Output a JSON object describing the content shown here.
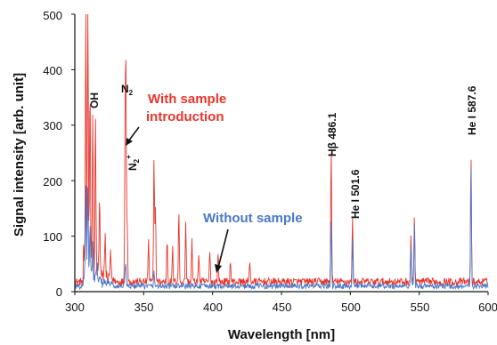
{
  "chart_data": {
    "type": "line",
    "xlabel": "Wavelength [nm]",
    "ylabel": "Signal intensity [arb. unit]",
    "xlim": [
      300,
      600
    ],
    "ylim": [
      0,
      500
    ],
    "x_ticks": [
      "300",
      "350",
      "400",
      "450",
      "500",
      "550",
      "600"
    ],
    "y_ticks": [
      "0",
      "100",
      "200",
      "300",
      "400",
      "500"
    ],
    "grid": false,
    "colors": {
      "with_sample": "#e8352b",
      "without_sample": "#4a78c8"
    },
    "series": [
      {
        "name": "With sample introduction",
        "color": "#e8352b",
        "baseline": 15,
        "noise": 14,
        "peaks": [
          [
            308,
            500
          ],
          [
            309.5,
            500
          ],
          [
            311,
            330
          ],
          [
            313,
            270
          ],
          [
            315,
            285
          ],
          [
            318,
            120
          ],
          [
            322,
            70
          ],
          [
            326,
            50
          ],
          [
            336.5,
            260
          ],
          [
            337.1,
            350
          ],
          [
            338,
            110
          ],
          [
            353.5,
            80
          ],
          [
            357.5,
            225
          ],
          [
            358.5,
            140
          ],
          [
            367,
            80
          ],
          [
            371,
            60
          ],
          [
            375.5,
            130
          ],
          [
            380.5,
            110
          ],
          [
            385,
            75
          ],
          [
            390,
            55
          ],
          [
            398,
            60
          ],
          [
            404,
            55
          ],
          [
            413,
            40
          ],
          [
            427,
            40
          ],
          [
            486.1,
            240
          ],
          [
            501.6,
            120
          ],
          [
            544,
            80
          ],
          [
            546.5,
            120
          ],
          [
            587.6,
            225
          ]
        ]
      },
      {
        "name": "Without sample",
        "color": "#4a78c8",
        "baseline": 8,
        "noise": 10,
        "peaks": [
          [
            308,
            150
          ],
          [
            309.5,
            180
          ],
          [
            311,
            100
          ],
          [
            313,
            60
          ],
          [
            316,
            40
          ],
          [
            336.5,
            25
          ],
          [
            337.1,
            35
          ],
          [
            357.5,
            25
          ],
          [
            486.1,
            120
          ],
          [
            501.6,
            90
          ],
          [
            544,
            75
          ],
          [
            546.5,
            115
          ],
          [
            587.6,
            225
          ]
        ]
      }
    ],
    "annotations": {
      "oh": "OH",
      "n2": "N",
      "n2_sub": "2",
      "n2plus": "N",
      "n2plus_sub": "2",
      "n2plus_sup": "+",
      "hbeta": "Hβ 486.1",
      "he501": "He I 501.6",
      "he587": "He I 587.6"
    },
    "series_labels": {
      "with_line1": "With sample",
      "with_line2": "introduction",
      "without": "Without sample"
    }
  }
}
